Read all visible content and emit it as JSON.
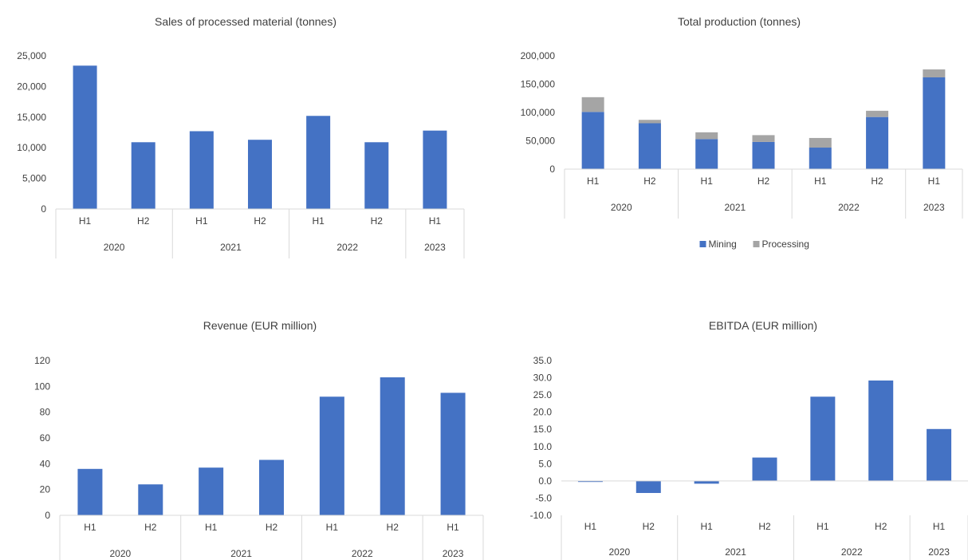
{
  "colors": {
    "mining": "#4472C4",
    "processing": "#A5A5A5",
    "axis": "#D9D9D9",
    "text": "#404040"
  },
  "chart_data": [
    {
      "id": "sales",
      "type": "bar",
      "title": "Sales of processed material (tonnes)",
      "years": [
        "2020",
        "2021",
        "2022",
        "2023"
      ],
      "categories": [
        "H1",
        "H2",
        "H1",
        "H2",
        "H1",
        "H2",
        "H1"
      ],
      "series": [
        {
          "values": [
            23400,
            10900,
            12700,
            11300,
            15200,
            10900,
            12800
          ]
        }
      ],
      "yticks": [
        "0",
        "5,000",
        "10,000",
        "15,000",
        "20,000",
        "25,000"
      ],
      "ylim": [
        0,
        25000
      ],
      "grid": false
    },
    {
      "id": "production",
      "type": "bar",
      "stacked": true,
      "title": "Total production (tonnes)",
      "years": [
        "2020",
        "2021",
        "2022",
        "2023"
      ],
      "categories": [
        "H1",
        "H2",
        "H1",
        "H2",
        "H1",
        "H2",
        "H1"
      ],
      "series": [
        {
          "name": "Mining",
          "values": [
            101000,
            81000,
            53000,
            48000,
            38000,
            92000,
            162000
          ]
        },
        {
          "name": "Processing",
          "values": [
            26000,
            6000,
            12000,
            12000,
            17000,
            11000,
            14000
          ]
        }
      ],
      "yticks": [
        "0",
        "50,000",
        "100,000",
        "150,000",
        "200,000"
      ],
      "ylim": [
        0,
        200000
      ],
      "legend": "bottom",
      "grid": false
    },
    {
      "id": "revenue",
      "type": "bar",
      "title": "Revenue (EUR million)",
      "years": [
        "2020",
        "2021",
        "2022",
        "2023"
      ],
      "categories": [
        "H1",
        "H2",
        "H1",
        "H2",
        "H1",
        "H2",
        "H1"
      ],
      "series": [
        {
          "values": [
            36,
            24,
            37,
            43,
            92,
            107,
            95
          ]
        }
      ],
      "yticks": [
        "0",
        "20",
        "40",
        "60",
        "80",
        "100",
        "120"
      ],
      "ylim": [
        0,
        120
      ],
      "grid": false
    },
    {
      "id": "ebitda",
      "type": "bar",
      "title": "EBITDA (EUR million)",
      "years": [
        "2020",
        "2021",
        "2022",
        "2023"
      ],
      "categories": [
        "H1",
        "H2",
        "H1",
        "H2",
        "H1",
        "H2",
        "H1"
      ],
      "series": [
        {
          "values": [
            -0.3,
            -3.5,
            -0.8,
            6.8,
            24.5,
            29.2,
            15.1
          ]
        }
      ],
      "yticks": [
        "-10.0",
        "-5.0",
        "0.0",
        "5.0",
        "10.0",
        "15.0",
        "20.0",
        "25.0",
        "30.0",
        "35.0"
      ],
      "ylim": [
        -10,
        35
      ],
      "grid": false
    }
  ]
}
